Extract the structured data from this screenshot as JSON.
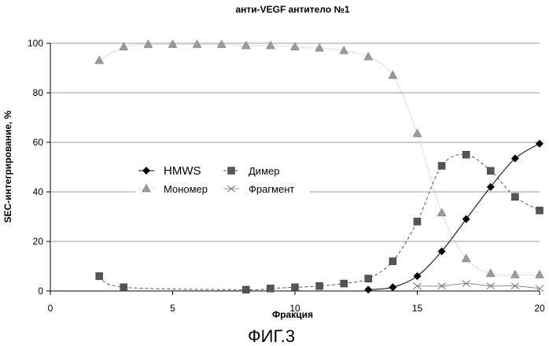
{
  "chart_data": {
    "type": "line",
    "title": "анти-VEGF антитело №1",
    "xlabel": "Фракция",
    "ylabel": "SEC-интегрирование, %",
    "xlim": [
      0,
      20
    ],
    "ylim": [
      0,
      100
    ],
    "xticks": [
      0,
      5,
      10,
      15,
      20
    ],
    "yticks": [
      0,
      20,
      40,
      60,
      80,
      100
    ],
    "grid": "horizontal",
    "legend_placement": "center-left",
    "series": [
      {
        "name": "HMWS",
        "color": "#000000",
        "marker": "diamond",
        "line": "solid",
        "x": [
          13,
          14,
          15,
          16,
          17,
          18,
          19,
          20
        ],
        "y": [
          0.5,
          1.5,
          6,
          16,
          29,
          42,
          53.5,
          59.5
        ]
      },
      {
        "name": "Димер",
        "color": "#555555",
        "marker": "square",
        "line": "dashed",
        "x": [
          2,
          3,
          8,
          9,
          10,
          11,
          12,
          13,
          14,
          15,
          16,
          17,
          18,
          19,
          20
        ],
        "y": [
          6,
          1.5,
          0.5,
          1,
          1.5,
          2,
          3,
          5,
          12,
          28,
          50.5,
          55,
          48.5,
          38,
          32.5
        ]
      },
      {
        "name": "Мономер",
        "color": "#9a9a9a",
        "marker": "triangle",
        "line": "dotted",
        "x": [
          2,
          3,
          4,
          5,
          6,
          7,
          8,
          9,
          10,
          11,
          12,
          13,
          14,
          15,
          16,
          17,
          18,
          19,
          20
        ],
        "y": [
          93,
          98.5,
          99.5,
          99.5,
          99.5,
          99.5,
          99,
          99,
          98.5,
          98,
          97,
          94.5,
          87,
          63.5,
          31.5,
          13,
          7,
          6.5,
          6.5
        ]
      },
      {
        "name": "Фрагмент",
        "color": "#777777",
        "marker": "x",
        "line": "solid-thin",
        "x": [
          15,
          16,
          17,
          18,
          19,
          20
        ],
        "y": [
          2,
          2,
          3,
          2,
          2,
          1
        ]
      }
    ]
  },
  "figure_caption": "ФИГ.3"
}
